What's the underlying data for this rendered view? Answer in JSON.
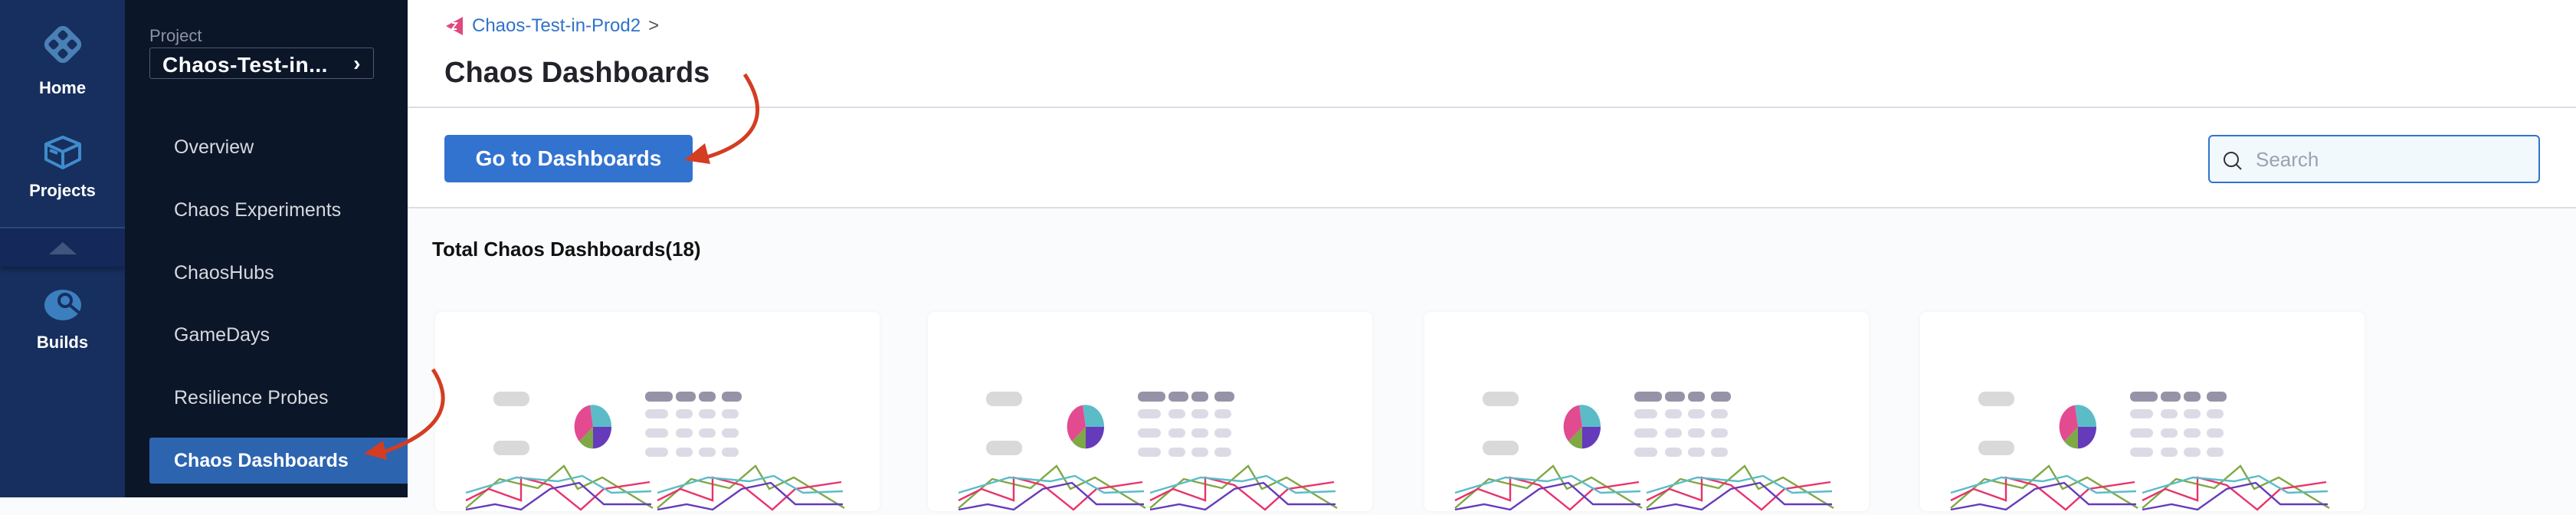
{
  "rail": {
    "items": [
      {
        "label": "Home",
        "icon": "home-icon"
      },
      {
        "label": "Projects",
        "icon": "projects-icon"
      },
      {
        "label": "Builds",
        "icon": "builds-icon"
      }
    ]
  },
  "subnav": {
    "project_label": "Project",
    "project_value": "Chaos-Test-in...",
    "items": [
      {
        "label": "Overview"
      },
      {
        "label": "Chaos Experiments"
      },
      {
        "label": "ChaosHubs"
      },
      {
        "label": "GameDays"
      },
      {
        "label": "Resilience Probes"
      },
      {
        "label": "Chaos Dashboards",
        "active": true
      }
    ]
  },
  "header": {
    "breadcrumb": "Chaos-Test-in-Prod2",
    "breadcrumb_sep": ">",
    "title": "Chaos Dashboards"
  },
  "toolbar": {
    "go_label": "Go to Dashboards",
    "search_placeholder": "Search",
    "search_value": ""
  },
  "content": {
    "total_label": "Total Chaos Dashboards(18)",
    "cards_visible": 4
  },
  "colors": {
    "accent": "#3273d0",
    "rail": "#172f5e",
    "subnav": "#0c1629",
    "annotation_arrow": "#d33d22",
    "series": [
      "#e8336b",
      "#5bbcc8",
      "#7fa846",
      "#653bbb"
    ]
  }
}
